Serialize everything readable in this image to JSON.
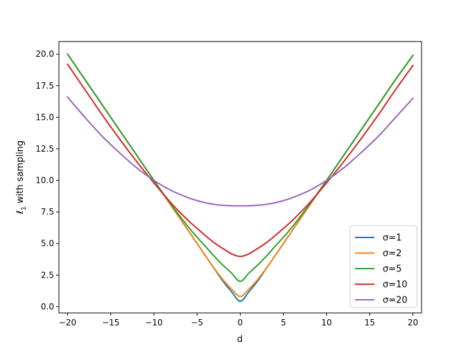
{
  "chart_data": {
    "type": "line",
    "title": "",
    "xlabel": "d",
    "ylabel_parts": {
      "ell": "ℓ",
      "sub": "1",
      "rest": " with sampling"
    },
    "xlim": [
      -21,
      21
    ],
    "ylim": [
      -0.5,
      21.0
    ],
    "xticks": [
      -20,
      -15,
      -10,
      -5,
      0,
      5,
      10,
      15,
      20
    ],
    "xtick_labels": [
      "−20",
      "−15",
      "−10",
      "−5",
      "0",
      "5",
      "10",
      "15",
      "20"
    ],
    "yticks": [
      0,
      2.5,
      5,
      7.5,
      10,
      12.5,
      15,
      17.5,
      20
    ],
    "ytick_labels": [
      "0.0",
      "2.5",
      "5.0",
      "7.5",
      "10.0",
      "12.5",
      "15.0",
      "17.5",
      "20.0"
    ],
    "grid": false,
    "legend_placement": "lower-right",
    "x": [
      -20,
      -18,
      -16,
      -14,
      -12,
      -10,
      -8,
      -6,
      -5,
      -4,
      -3,
      -2,
      -1,
      0,
      1,
      2,
      3,
      4,
      5,
      6,
      8,
      10,
      12,
      14,
      16,
      18,
      20
    ],
    "series": [
      {
        "name": "σ=1",
        "color": "#1f77b4",
        "values": [
          20.0,
          18.0,
          16.0,
          14.0,
          12.0,
          10.0,
          8.0,
          6.0,
          5.0,
          4.0,
          3.0,
          2.01,
          1.17,
          0.42,
          1.17,
          2.01,
          3.0,
          4.0,
          5.0,
          6.0,
          8.0,
          10.0,
          12.0,
          14.0,
          16.0,
          18.0,
          19.9
        ]
      },
      {
        "name": "σ=2",
        "color": "#ff7f0e",
        "values": [
          20.0,
          18.0,
          16.0,
          14.0,
          12.0,
          10.0,
          8.0,
          6.0,
          5.0,
          4.0,
          3.02,
          2.13,
          1.38,
          0.8,
          1.38,
          2.13,
          3.02,
          4.0,
          5.0,
          6.0,
          8.0,
          10.0,
          12.0,
          14.0,
          16.0,
          18.0,
          19.9
        ]
      },
      {
        "name": "σ=5",
        "color": "#2ca02c",
        "values": [
          20.0,
          18.0,
          16.0,
          14.0,
          12.0,
          10.0,
          8.08,
          6.3,
          5.5,
          4.75,
          3.98,
          3.28,
          2.65,
          2.0,
          2.65,
          3.28,
          3.98,
          4.75,
          5.5,
          6.3,
          8.08,
          10.0,
          12.0,
          14.0,
          16.0,
          18.0,
          19.9
        ]
      },
      {
        "name": "σ=10",
        "color": "#d62728",
        "values": [
          19.2,
          17.2,
          15.2,
          13.3,
          11.5,
          9.8,
          8.2,
          6.8,
          6.2,
          5.6,
          5.05,
          4.6,
          4.18,
          3.97,
          4.18,
          4.6,
          5.05,
          5.6,
          6.2,
          6.8,
          8.2,
          9.8,
          11.5,
          13.3,
          15.2,
          17.2,
          19.1
        ]
      },
      {
        "name": "σ=20",
        "color": "#9467bd",
        "values": [
          16.6,
          15.0,
          13.5,
          12.2,
          11.0,
          10.0,
          9.2,
          8.62,
          8.4,
          8.22,
          8.1,
          8.03,
          7.99,
          7.98,
          7.99,
          8.03,
          8.1,
          8.22,
          8.4,
          8.62,
          9.2,
          10.0,
          11.0,
          12.2,
          13.5,
          15.0,
          16.5
        ]
      }
    ]
  }
}
